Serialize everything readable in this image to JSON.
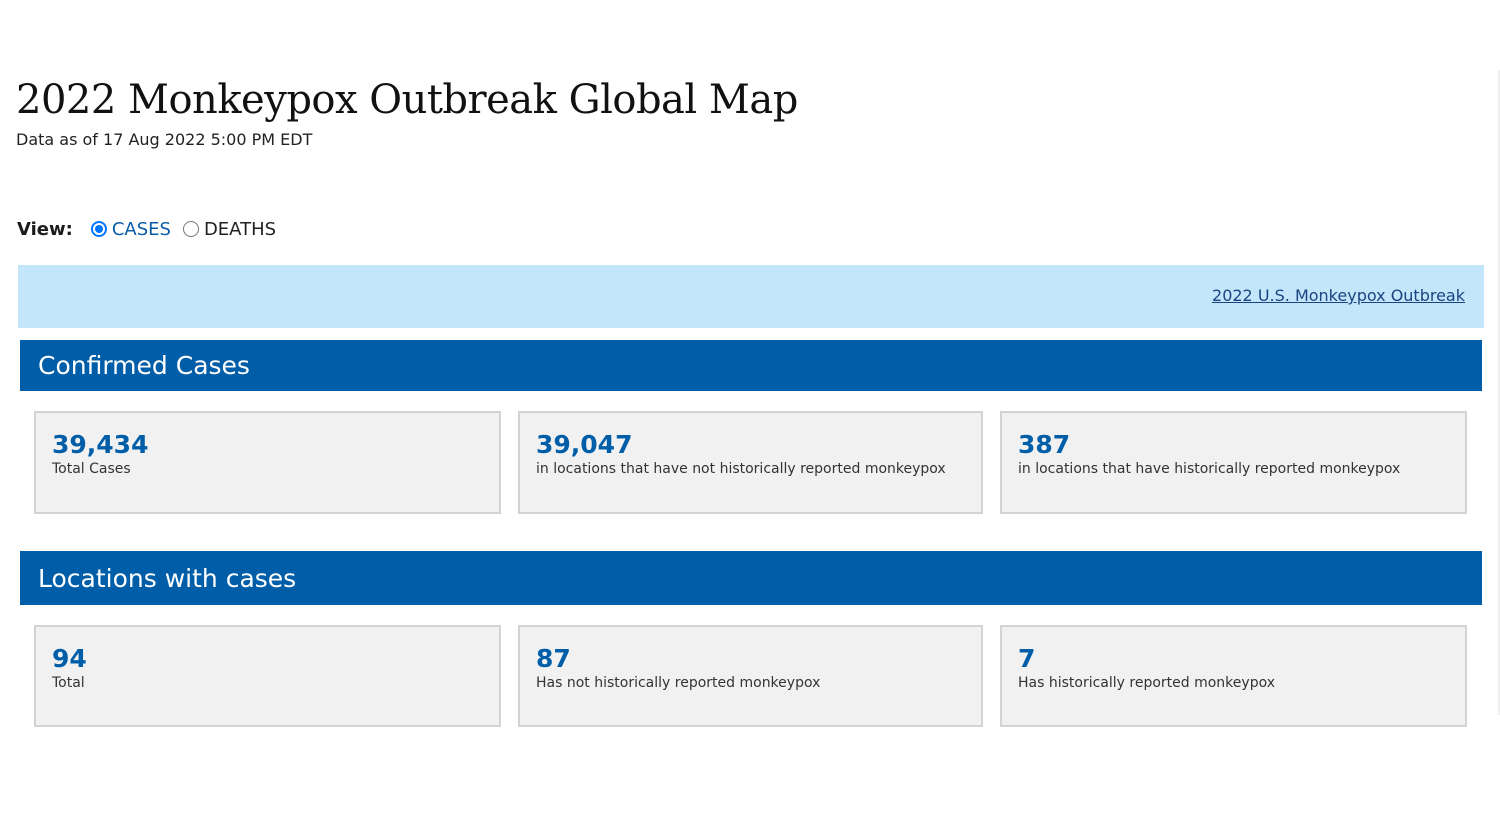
{
  "page": {
    "title": "2022 Monkeypox Outbreak Global Map",
    "subtitle": "Data as of 17 Aug 2022 5:00 PM EDT"
  },
  "view": {
    "label": "View:",
    "options": [
      {
        "label": "CASES",
        "selected": true
      },
      {
        "label": "DEATHS",
        "selected": false
      }
    ]
  },
  "banner": {
    "link_text": "2022 U.S. Monkeypox Outbreak"
  },
  "confirmed_cases": {
    "heading": "Confirmed Cases",
    "cards": [
      {
        "value": "39,434",
        "label": "Total Cases"
      },
      {
        "value": "39,047",
        "label": "in locations that have not historically reported monkeypox"
      },
      {
        "value": "387",
        "label": "in locations that have historically reported monkeypox"
      }
    ]
  },
  "locations": {
    "heading": "Locations with cases",
    "cards": [
      {
        "value": "94",
        "label": "Total"
      },
      {
        "value": "87",
        "label": "Has not historically reported monkeypox"
      },
      {
        "value": "7",
        "label": "Has historically reported monkeypox"
      }
    ]
  },
  "colors": {
    "accent_blue": "#005ea8",
    "banner_bg": "#c3e6fb",
    "card_bg": "#f1f1f1",
    "radio_checked": "#0075ff"
  }
}
